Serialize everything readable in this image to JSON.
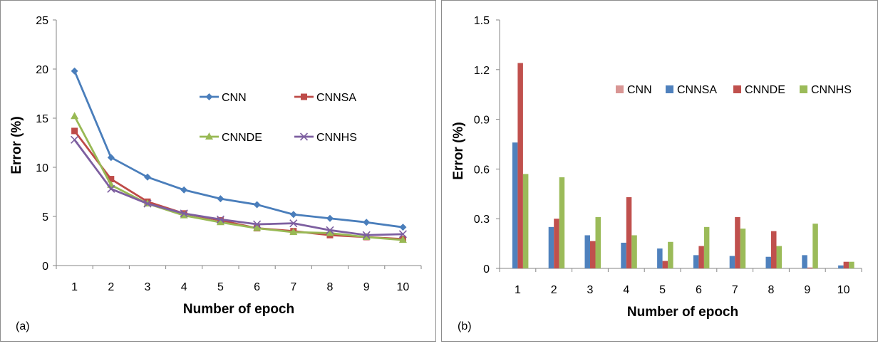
{
  "chart_data": [
    {
      "type": "line",
      "panel_label": "(a)",
      "title": "",
      "xlabel": "Number of epoch",
      "ylabel": "Error (%)",
      "categories": [
        "1",
        "2",
        "3",
        "4",
        "5",
        "6",
        "7",
        "8",
        "9",
        "10"
      ],
      "ylim": [
        0,
        25
      ],
      "yticks": [
        "0",
        "5",
        "10",
        "15",
        "20",
        "25"
      ],
      "grid": false,
      "legend_position": "right-center",
      "series": [
        {
          "name": "CNN",
          "color": "#4a7ebb",
          "marker": "diamond",
          "values": [
            19.8,
            11.0,
            9.0,
            7.7,
            6.8,
            6.2,
            5.2,
            4.8,
            4.4,
            3.9
          ]
        },
        {
          "name": "CNNSA",
          "color": "#be4b48",
          "marker": "square",
          "values": [
            13.7,
            8.8,
            6.5,
            5.3,
            4.6,
            3.8,
            3.5,
            3.1,
            2.9,
            2.7
          ]
        },
        {
          "name": "CNNDE",
          "color": "#98b954",
          "marker": "triangle",
          "values": [
            15.2,
            8.2,
            6.3,
            5.1,
            4.4,
            3.8,
            3.4,
            3.3,
            2.9,
            2.6
          ]
        },
        {
          "name": "CNNHS",
          "color": "#7d5fa0",
          "marker": "x",
          "values": [
            12.8,
            7.8,
            6.3,
            5.3,
            4.7,
            4.2,
            4.3,
            3.6,
            3.1,
            3.2
          ]
        }
      ]
    },
    {
      "type": "bar",
      "panel_label": "(b)",
      "title": "",
      "xlabel": "Number of epoch",
      "ylabel": "Error (%)",
      "categories": [
        "1",
        "2",
        "3",
        "4",
        "5",
        "6",
        "7",
        "8",
        "9",
        "10"
      ],
      "ylim": [
        0,
        1.5
      ],
      "yticks": [
        "0",
        "0.3",
        "0.6",
        "0.9",
        "1.2",
        "1.5"
      ],
      "grid": false,
      "legend_position": "top-center",
      "series": [
        {
          "name": "CNN",
          "color": "#d99694",
          "values": [
            0,
            0,
            0,
            0,
            0,
            0,
            0,
            0,
            0,
            0
          ]
        },
        {
          "name": "CNNSA",
          "color": "#4f81bd",
          "values": [
            0.76,
            0.25,
            0.2,
            0.155,
            0.12,
            0.08,
            0.075,
            0.07,
            0.08,
            0.018
          ]
        },
        {
          "name": "CNNDE",
          "color": "#c0504d",
          "values": [
            1.24,
            0.3,
            0.165,
            0.43,
            0.045,
            0.135,
            0.31,
            0.225,
            0.005,
            0.04
          ]
        },
        {
          "name": "CNNHS",
          "color": "#9bbb59",
          "values": [
            0.57,
            0.55,
            0.31,
            0.2,
            0.16,
            0.25,
            0.24,
            0.135,
            0.27,
            0.04
          ]
        }
      ]
    }
  ]
}
